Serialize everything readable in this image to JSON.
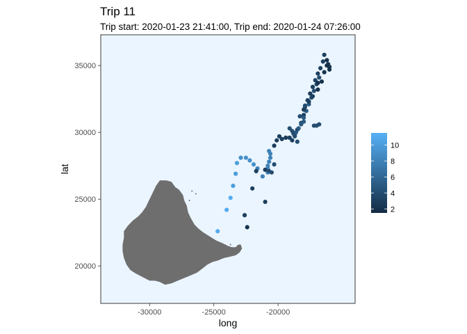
{
  "chart_data": {
    "type": "scatter",
    "title": "Trip 11",
    "subtitle": "Trip start: 2020-01-23 21:41:00, Trip end: 2020-01-24 07:26:00",
    "xlabel": "long",
    "ylabel": "lat",
    "xlim": [
      -33800,
      -14000
    ],
    "ylim": [
      17200,
      37300
    ],
    "x_ticks": [
      -30000,
      -25000,
      -20000
    ],
    "x_tick_labels": [
      "-30000",
      "-25000",
      "-20000"
    ],
    "y_ticks": [
      20000,
      25000,
      30000,
      35000
    ],
    "y_tick_labels": [
      "20000",
      "25000",
      "30000",
      "35000"
    ],
    "grid": false,
    "panel_fill": "#ebf5ff",
    "land_fill": "#6e6e6e",
    "legend": {
      "placement": "right",
      "type": "continuous colorbar",
      "min": 1.5,
      "max": 11.5,
      "ticks": [
        2,
        4,
        6,
        8,
        10
      ],
      "tick_labels": [
        "2",
        "4",
        "6",
        "8",
        "10"
      ],
      "low_color": "#132b43",
      "high_color": "#56b1f7"
    },
    "land_outline": [
      [
        -29200,
        26400
      ],
      [
        -28700,
        26400
      ],
      [
        -28300,
        26300
      ],
      [
        -28000,
        25900
      ],
      [
        -27700,
        25700
      ],
      [
        -27400,
        25300
      ],
      [
        -27300,
        24900
      ],
      [
        -27100,
        24500
      ],
      [
        -27000,
        24000
      ],
      [
        -26800,
        23600
      ],
      [
        -26500,
        23100
      ],
      [
        -26200,
        22800
      ],
      [
        -25800,
        22500
      ],
      [
        -25300,
        22200
      ],
      [
        -24800,
        21900
      ],
      [
        -24300,
        21700
      ],
      [
        -23900,
        21500
      ],
      [
        -23600,
        21400
      ],
      [
        -23300,
        21400
      ],
      [
        -23100,
        21600
      ],
      [
        -22900,
        21600
      ],
      [
        -22800,
        21300
      ],
      [
        -23000,
        21000
      ],
      [
        -23300,
        20800
      ],
      [
        -23700,
        20700
      ],
      [
        -24200,
        20600
      ],
      [
        -24700,
        20400
      ],
      [
        -25100,
        20300
      ],
      [
        -25500,
        20100
      ],
      [
        -25900,
        19800
      ],
      [
        -26300,
        19500
      ],
      [
        -26800,
        19300
      ],
      [
        -27300,
        19100
      ],
      [
        -27800,
        18900
      ],
      [
        -28300,
        18700
      ],
      [
        -28800,
        18600
      ],
      [
        -29200,
        18800
      ],
      [
        -29600,
        18900
      ],
      [
        -30000,
        18900
      ],
      [
        -30400,
        19100
      ],
      [
        -30800,
        19300
      ],
      [
        -31200,
        19500
      ],
      [
        -31500,
        19700
      ],
      [
        -31800,
        20100
      ],
      [
        -32000,
        20600
      ],
      [
        -32100,
        21100
      ],
      [
        -32100,
        21600
      ],
      [
        -32000,
        22100
      ],
      [
        -32000,
        22600
      ],
      [
        -31700,
        23000
      ],
      [
        -31300,
        23400
      ],
      [
        -30900,
        23700
      ],
      [
        -30600,
        24000
      ],
      [
        -30300,
        24400
      ],
      [
        -30100,
        24800
      ],
      [
        -29900,
        25200
      ],
      [
        -29700,
        25600
      ],
      [
        -29500,
        26000
      ]
    ],
    "islets": [
      [
        -26700,
        25600
      ],
      [
        -26400,
        25400
      ],
      [
        -26900,
        24900
      ],
      [
        -23700,
        21600
      ]
    ],
    "x": [
      -24700,
      -24000,
      -23700,
      -23500,
      -23300,
      -23200,
      -22900,
      -22500,
      -22200,
      -21900,
      -21600,
      -21200,
      -20800,
      -20800,
      -20700,
      -20600,
      -20600,
      -20700,
      -20800,
      -20800,
      -21000,
      -22600,
      -22400,
      -22000,
      -21700,
      -21000,
      -20700,
      -20500,
      -20300,
      -20300,
      -20100,
      -19900,
      -19700,
      -19400,
      -19100,
      -18900,
      -18700,
      -18500,
      -18200,
      -18000,
      -17900,
      -17700,
      -17500,
      -17300,
      -17100,
      -16900,
      -16700,
      -16500,
      -16400,
      -16200,
      -16100,
      -16000,
      -16800,
      -17000,
      -17200,
      -17400,
      -17600,
      -17800,
      -18000,
      -18200,
      -18400,
      -18600,
      -18700,
      -18800,
      -18900,
      -19100,
      -16100,
      -16000,
      -16200,
      -16400,
      -16600,
      -16900,
      -17300,
      -17600,
      -18000,
      -18300,
      -17200,
      -17000,
      -16800,
      -18500,
      -18700,
      -18000,
      -17900,
      -16900
    ],
    "y": [
      22600,
      24200,
      25100,
      26000,
      26900,
      27700,
      28100,
      28100,
      27900,
      27600,
      27300,
      26700,
      27300,
      27500,
      27800,
      28100,
      28400,
      28600,
      27000,
      27200,
      24800,
      23800,
      22900,
      25800,
      27100,
      27200,
      27100,
      27000,
      27600,
      29000,
      29400,
      29700,
      29500,
      29600,
      29600,
      29400,
      29800,
      30200,
      30700,
      31300,
      31900,
      32400,
      32900,
      33400,
      33900,
      34400,
      34800,
      35300,
      35800,
      35400,
      35000,
      34900,
      34100,
      33600,
      33100,
      32600,
      32100,
      31600,
      31100,
      30600,
      30300,
      30000,
      29800,
      29900,
      30100,
      30300,
      35100,
      34700,
      35000,
      34500,
      33800,
      33200,
      32700,
      32300,
      31700,
      31200,
      30500,
      30500,
      30600,
      29300,
      29700,
      30800,
      32000,
      33700
    ],
    "color_value": [
      11,
      11,
      11,
      10,
      10,
      10,
      9,
      9,
      9,
      9,
      8,
      8,
      8,
      8,
      8,
      8,
      8,
      8,
      8,
      8,
      3,
      3,
      2,
      3,
      3,
      3,
      4,
      4,
      4,
      3,
      3,
      3,
      3,
      3,
      3,
      3,
      3,
      3,
      3,
      3,
      3,
      3,
      3,
      3,
      3,
      3,
      3,
      3,
      3,
      2,
      2,
      2,
      4,
      4,
      4,
      4,
      5,
      5,
      5,
      5,
      5,
      5,
      5,
      4,
      4,
      4,
      2,
      2,
      2,
      2,
      2,
      2,
      3,
      3,
      3,
      4,
      4,
      4,
      4,
      4,
      4,
      5,
      4,
      2
    ]
  }
}
